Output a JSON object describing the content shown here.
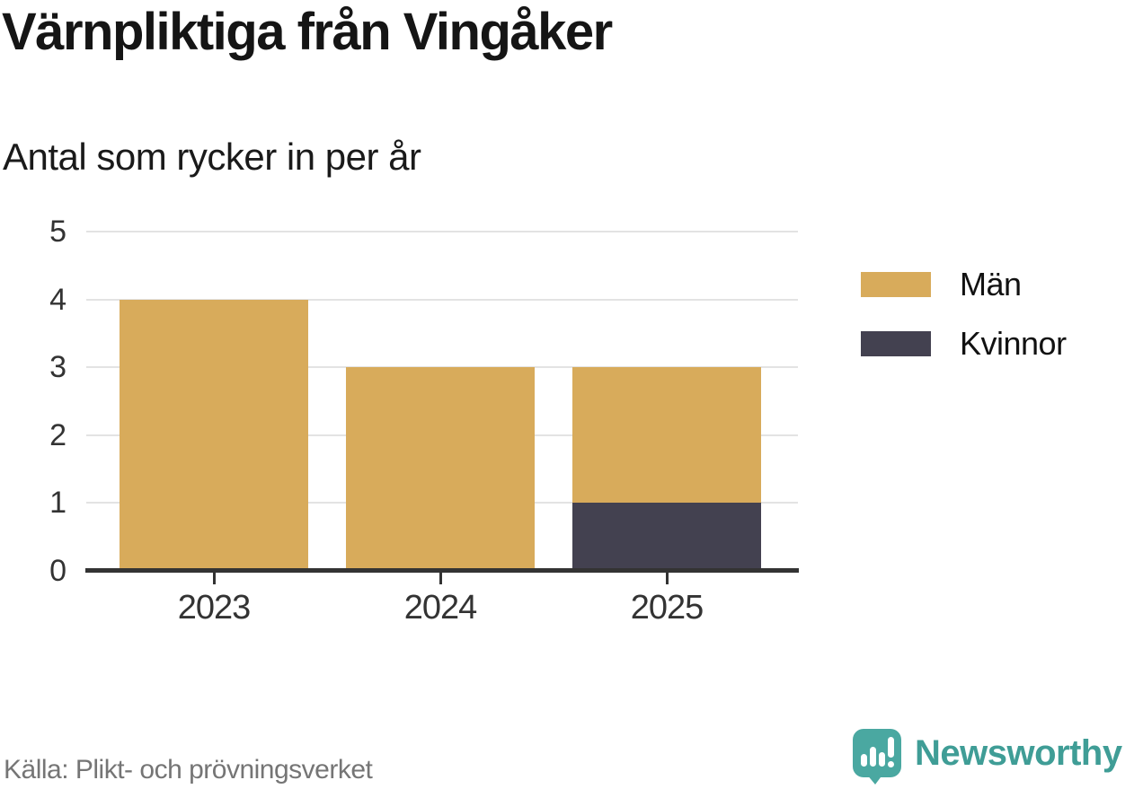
{
  "chart_data": {
    "type": "bar",
    "stacked": true,
    "title": "Värnpliktiga från Vingåker",
    "subtitle": "Antal som rycker in per år",
    "categories": [
      "2023",
      "2024",
      "2025"
    ],
    "series": [
      {
        "name": "Män",
        "color": "#D8AB5B",
        "values": [
          4,
          3,
          2
        ]
      },
      {
        "name": "Kvinnor",
        "color": "#434150",
        "values": [
          0,
          0,
          1
        ]
      }
    ],
    "stack_order_bottom_to_top": [
      "Kvinnor",
      "Män"
    ],
    "xlabel": "",
    "ylabel": "",
    "ylim": [
      0,
      5
    ],
    "yticks": [
      0,
      1,
      2,
      3,
      4,
      5
    ],
    "grid": true,
    "legend_position": "right"
  },
  "footer": {
    "source": "Källa: Plikt- och prövningsverket",
    "brand": "Newsworthy"
  },
  "colors": {
    "brand_teal": "#3F9D96",
    "brand_icon_teal": "#4AA8A1",
    "axis": "#333333",
    "gridline": "#e3e3e3"
  }
}
